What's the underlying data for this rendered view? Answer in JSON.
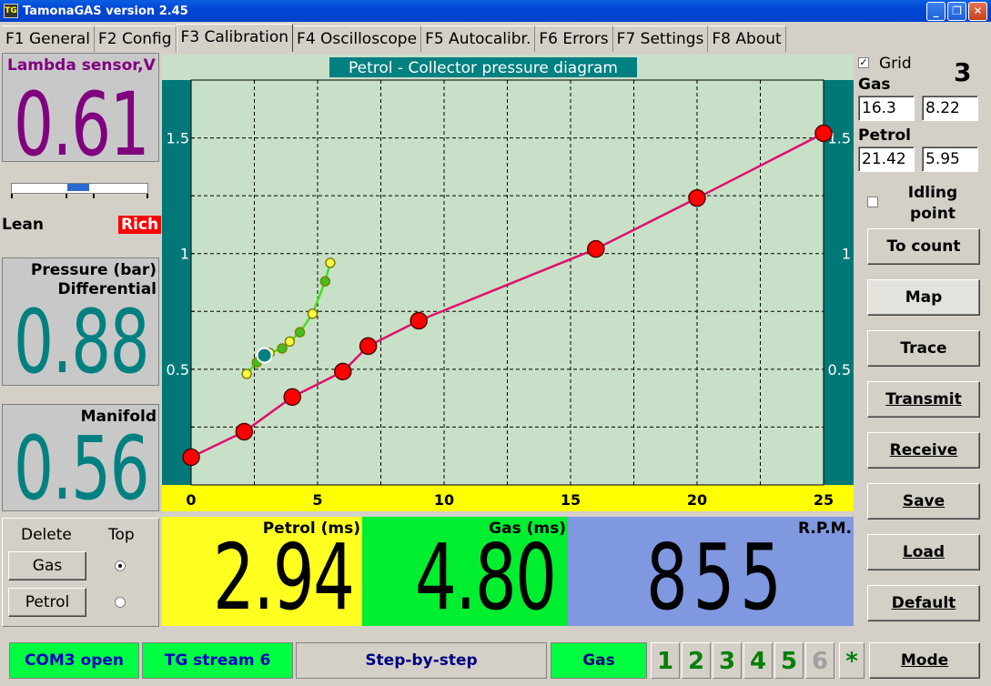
{
  "window": {
    "title": "TamonaGAS  version 2.45",
    "app_icon": "app-icon"
  },
  "tabs": [
    {
      "label": "F1 General",
      "active": false
    },
    {
      "label": "F2 Config",
      "active": false
    },
    {
      "label": "F3 Calibration",
      "active": true
    },
    {
      "label": "F4 Oscilloscope",
      "active": false
    },
    {
      "label": "F5 Autocalibr.",
      "active": false
    },
    {
      "label": "F6 Errors",
      "active": false
    },
    {
      "label": "F7 Settings",
      "active": false
    },
    {
      "label": "F8 About",
      "active": false
    }
  ],
  "lambda": {
    "title": "Lambda sensor,V",
    "value": "0.61",
    "lean": "Lean",
    "rich": "Rich",
    "indicator": 0.5
  },
  "pressure": {
    "title1": "Pressure (bar)",
    "title2": "Differential",
    "value": "0.88"
  },
  "manifold": {
    "title": "Manifold",
    "value": "0.56"
  },
  "delete_panel": {
    "delete_label": "Delete",
    "top_label": "Top",
    "gas_btn": "Gas",
    "petrol_btn": "Petrol",
    "selected": "Gas"
  },
  "chart_data": {
    "type": "line",
    "title": "Petrol - Collector pressure diagram",
    "xlabel": "",
    "ylabel": "",
    "xlim": [
      0,
      25
    ],
    "ylim": [
      0,
      1.75
    ],
    "x_ticks": [
      "0",
      "5",
      "10",
      "15",
      "20",
      "25"
    ],
    "y_ticks": [
      "0.5",
      "1",
      "1.5"
    ],
    "grid": true,
    "series": [
      {
        "color": "#e0106c",
        "marker": "#ff0000",
        "x": [
          0,
          2.1,
          4,
          6,
          7,
          9,
          16,
          20,
          25
        ],
        "y": [
          0.12,
          0.23,
          0.38,
          0.49,
          0.6,
          0.71,
          1.02,
          1.24,
          1.52
        ]
      },
      {
        "color": "#40e020",
        "marker": "#ffff40",
        "x": [
          2.2,
          2.6,
          3.1,
          3.6,
          3.9,
          4.3,
          4.8,
          5.3,
          5.5
        ],
        "y": [
          0.48,
          0.53,
          0.57,
          0.59,
          0.62,
          0.66,
          0.74,
          0.88,
          0.96
        ]
      }
    ],
    "current_point": {
      "x": 2.9,
      "y": 0.56
    }
  },
  "right": {
    "grid_label": "Grid",
    "grid_checked": true,
    "big_number": "3",
    "gas_label": "Gas",
    "gas_v1": "16.3",
    "gas_v2": "8.22",
    "petrol_label": "Petrol",
    "petrol_v1": "21.42",
    "petrol_v2": "5.95",
    "idling_label1": "Idling",
    "idling_label2": "point",
    "buttons": [
      "To count",
      "Map",
      "Trace",
      "Transmit",
      "Receive",
      "Save",
      "Load",
      "Default"
    ]
  },
  "readouts": {
    "petrol": {
      "label": "Petrol (ms)",
      "value": "2.94",
      "color": "#ffff20"
    },
    "gas": {
      "label": "Gas (ms)",
      "value": "4.80",
      "color": "#00ee30"
    },
    "rpm": {
      "label": "R.P.M.",
      "value": "855",
      "color": "#8098e0"
    }
  },
  "status": {
    "com": "COM3 open",
    "stream": "TG stream 6",
    "mode_text": "Step-by-step",
    "fuel": "Gas",
    "numbers": [
      "1",
      "2",
      "3",
      "4",
      "5",
      "6"
    ],
    "star": "*",
    "mode_btn": "Mode"
  }
}
